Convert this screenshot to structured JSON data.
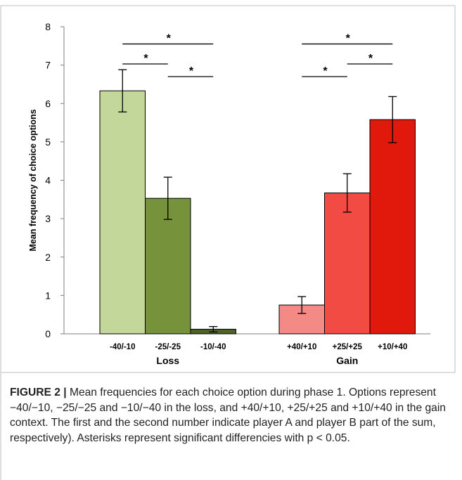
{
  "chart_data": {
    "type": "bar",
    "ylabel": "Mean frequency of choice options",
    "ylim": [
      0,
      8
    ],
    "yticks": [
      0,
      1,
      2,
      3,
      4,
      5,
      6,
      7,
      8
    ],
    "grid": false,
    "legend": "none",
    "groups": [
      {
        "label": "Loss",
        "bars": [
          {
            "category": "-40/-10",
            "value": 6.33,
            "error": 0.55,
            "color": "#c4d79b"
          },
          {
            "category": "-25/-25",
            "value": 3.53,
            "error": 0.55,
            "color": "#76933c"
          },
          {
            "category": "-10/-40",
            "value": 0.12,
            "error": 0.07,
            "color": "#4f6228"
          }
        ]
      },
      {
        "label": "Gain",
        "bars": [
          {
            "category": "+40/+10",
            "value": 0.75,
            "error": 0.22,
            "color": "#f38a85"
          },
          {
            "category": "+25/+25",
            "value": 3.67,
            "error": 0.5,
            "color": "#f24b43"
          },
          {
            "category": "+10/+40",
            "value": 5.58,
            "error": 0.6,
            "color": "#e0190c"
          }
        ]
      }
    ],
    "significance": [
      {
        "group": 0,
        "from": 0,
        "to": 2,
        "level": 7.55,
        "mark": "*"
      },
      {
        "group": 0,
        "from": 0,
        "to": 1,
        "level": 7.03,
        "mark": "*"
      },
      {
        "group": 0,
        "from": 1,
        "to": 2,
        "level": 6.7,
        "mark": "*"
      },
      {
        "group": 1,
        "from": 0,
        "to": 2,
        "level": 7.55,
        "mark": "*"
      },
      {
        "group": 1,
        "from": 0,
        "to": 1,
        "level": 6.7,
        "mark": "*"
      },
      {
        "group": 1,
        "from": 1,
        "to": 2,
        "level": 7.03,
        "mark": "*"
      }
    ]
  },
  "caption": {
    "lead": "FIGURE 2 |",
    "text": " Mean frequencies for each choice option during phase 1. Options represent −40/−10, −25/−25 and −10/−40 in the loss, and +40/+10, +25/+25 and +10/+40 in the gain context. The first and the second number indicate player A and player B part of the sum, respectively). Asterisks represent significant differencies with p < 0.05."
  }
}
